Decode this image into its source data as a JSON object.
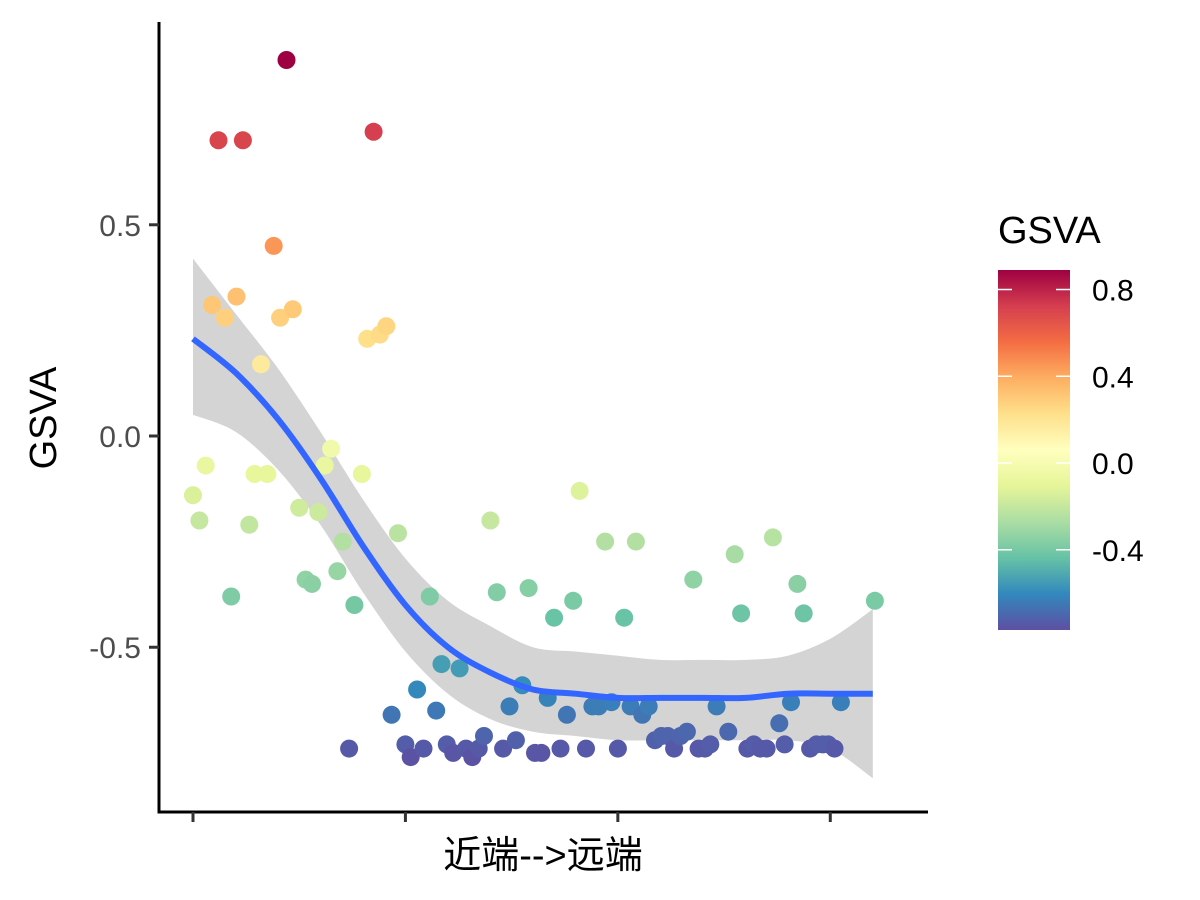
{
  "chart_data": {
    "type": "scatter",
    "xlabel": "近端-->远端",
    "ylabel": "GSVA",
    "ylim": [
      -0.89,
      0.98
    ],
    "xlim": [
      -1.6,
      34.6
    ],
    "xticks": [
      0,
      10,
      20,
      30
    ],
    "xtick_labels": [
      "",
      "",
      "",
      ""
    ],
    "yticks": [
      -0.5,
      0.0,
      0.5
    ],
    "ytick_labels": [
      "-0.5",
      "0.0",
      "0.5"
    ],
    "grid": false,
    "legend": {
      "title": "GSVA",
      "type": "colorbar",
      "placement": "right",
      "range": [
        -0.77,
        0.89
      ],
      "ticks": [
        -0.4,
        0.0,
        0.4,
        0.8
      ],
      "tick_labels": [
        "-0.4",
        "0.0",
        "0.4",
        "0.8"
      ]
    },
    "colormap": [
      "#5e4fa2",
      "#3288bd",
      "#66c2a5",
      "#abdda4",
      "#e6f598",
      "#ffffbf",
      "#fee08b",
      "#fdae61",
      "#f46d43",
      "#d53e4f",
      "#9e0142"
    ],
    "smooth": {
      "method": "loess",
      "color": "#3366ff",
      "band_color": "#d4d4d4",
      "x": [
        0,
        2,
        4,
        6,
        8,
        10,
        12,
        14,
        16,
        18,
        20,
        22,
        24,
        26,
        28,
        30,
        32
      ],
      "y": [
        0.23,
        0.15,
        0.04,
        -0.1,
        -0.26,
        -0.4,
        -0.5,
        -0.56,
        -0.6,
        -0.61,
        -0.62,
        -0.62,
        -0.62,
        -0.62,
        -0.61,
        -0.61,
        -0.61
      ],
      "lower": [
        0.05,
        0.01,
        -0.08,
        -0.21,
        -0.37,
        -0.51,
        -0.61,
        -0.67,
        -0.7,
        -0.71,
        -0.72,
        -0.72,
        -0.72,
        -0.72,
        -0.72,
        -0.74,
        -0.81
      ],
      "upper": [
        0.42,
        0.29,
        0.16,
        0.01,
        -0.15,
        -0.29,
        -0.39,
        -0.45,
        -0.5,
        -0.51,
        -0.52,
        -0.53,
        -0.53,
        -0.53,
        -0.52,
        -0.48,
        -0.41
      ]
    },
    "points": [
      {
        "x": 0,
        "y": -0.14
      },
      {
        "x": 0.3,
        "y": -0.2
      },
      {
        "x": 0.6,
        "y": -0.07
      },
      {
        "x": 0.9,
        "y": 0.31
      },
      {
        "x": 1.2,
        "y": 0.7
      },
      {
        "x": 1.5,
        "y": 0.28
      },
      {
        "x": 1.8,
        "y": -0.38
      },
      {
        "x": 2.05,
        "y": 0.33
      },
      {
        "x": 2.35,
        "y": 0.7
      },
      {
        "x": 2.65,
        "y": -0.21
      },
      {
        "x": 2.9,
        "y": -0.09
      },
      {
        "x": 3.2,
        "y": 0.17
      },
      {
        "x": 3.5,
        "y": -0.09
      },
      {
        "x": 3.8,
        "y": 0.45
      },
      {
        "x": 4.1,
        "y": 0.28
      },
      {
        "x": 4.4,
        "y": 0.89
      },
      {
        "x": 4.7,
        "y": 0.3
      },
      {
        "x": 5.0,
        "y": -0.17
      },
      {
        "x": 5.3,
        "y": -0.34
      },
      {
        "x": 5.6,
        "y": -0.35
      },
      {
        "x": 5.9,
        "y": -0.18
      },
      {
        "x": 6.2,
        "y": -0.07
      },
      {
        "x": 6.5,
        "y": -0.03
      },
      {
        "x": 6.8,
        "y": -0.32
      },
      {
        "x": 7.05,
        "y": -0.25
      },
      {
        "x": 7.35,
        "y": -0.74
      },
      {
        "x": 7.6,
        "y": -0.4
      },
      {
        "x": 7.95,
        "y": -0.09
      },
      {
        "x": 8.2,
        "y": 0.23
      },
      {
        "x": 8.5,
        "y": 0.72
      },
      {
        "x": 8.8,
        "y": 0.24
      },
      {
        "x": 9.1,
        "y": 0.26
      },
      {
        "x": 9.35,
        "y": -0.66
      },
      {
        "x": 9.65,
        "y": -0.23
      },
      {
        "x": 10.0,
        "y": -0.73
      },
      {
        "x": 10.25,
        "y": -0.76
      },
      {
        "x": 10.55,
        "y": -0.6
      },
      {
        "x": 10.85,
        "y": -0.74
      },
      {
        "x": 11.15,
        "y": -0.38
      },
      {
        "x": 11.45,
        "y": -0.65
      },
      {
        "x": 11.7,
        "y": -0.54
      },
      {
        "x": 11.95,
        "y": -0.73
      },
      {
        "x": 12.25,
        "y": -0.75
      },
      {
        "x": 12.55,
        "y": -0.55
      },
      {
        "x": 12.85,
        "y": -0.74
      },
      {
        "x": 13.15,
        "y": -0.76
      },
      {
        "x": 13.45,
        "y": -0.74
      },
      {
        "x": 13.7,
        "y": -0.71
      },
      {
        "x": 14.0,
        "y": -0.2
      },
      {
        "x": 14.3,
        "y": -0.37
      },
      {
        "x": 14.6,
        "y": -0.74
      },
      {
        "x": 14.9,
        "y": -0.64
      },
      {
        "x": 15.2,
        "y": -0.72
      },
      {
        "x": 15.5,
        "y": -0.59
      },
      {
        "x": 15.8,
        "y": -0.36
      },
      {
        "x": 16.1,
        "y": -0.75
      },
      {
        "x": 16.4,
        "y": -0.75
      },
      {
        "x": 16.7,
        "y": -0.62
      },
      {
        "x": 17.0,
        "y": -0.43
      },
      {
        "x": 17.3,
        "y": -0.74
      },
      {
        "x": 17.6,
        "y": -0.66
      },
      {
        "x": 17.9,
        "y": -0.39
      },
      {
        "x": 18.2,
        "y": -0.13
      },
      {
        "x": 18.5,
        "y": -0.74
      },
      {
        "x": 18.8,
        "y": -0.64
      },
      {
        "x": 19.1,
        "y": -0.64
      },
      {
        "x": 19.4,
        "y": -0.25
      },
      {
        "x": 19.7,
        "y": -0.63
      },
      {
        "x": 20.0,
        "y": -0.74
      },
      {
        "x": 20.3,
        "y": -0.43
      },
      {
        "x": 20.6,
        "y": -0.64
      },
      {
        "x": 20.85,
        "y": -0.25
      },
      {
        "x": 21.15,
        "y": -0.66
      },
      {
        "x": 21.45,
        "y": -0.64
      },
      {
        "x": 21.75,
        "y": -0.72
      },
      {
        "x": 22.05,
        "y": -0.71
      },
      {
        "x": 22.35,
        "y": -0.71
      },
      {
        "x": 22.65,
        "y": -0.74
      },
      {
        "x": 22.95,
        "y": -0.71
      },
      {
        "x": 23.25,
        "y": -0.7
      },
      {
        "x": 23.55,
        "y": -0.34
      },
      {
        "x": 23.8,
        "y": -0.74
      },
      {
        "x": 24.1,
        "y": -0.74
      },
      {
        "x": 24.35,
        "y": -0.73
      },
      {
        "x": 24.65,
        "y": -0.64
      },
      {
        "x": 25.2,
        "y": -0.7
      },
      {
        "x": 25.5,
        "y": -0.28
      },
      {
        "x": 25.8,
        "y": -0.42
      },
      {
        "x": 26.1,
        "y": -0.74
      },
      {
        "x": 26.4,
        "y": -0.73
      },
      {
        "x": 26.7,
        "y": -0.74
      },
      {
        "x": 27.0,
        "y": -0.74
      },
      {
        "x": 27.3,
        "y": -0.24
      },
      {
        "x": 27.6,
        "y": -0.68
      },
      {
        "x": 27.85,
        "y": -0.73
      },
      {
        "x": 28.15,
        "y": -0.63
      },
      {
        "x": 28.45,
        "y": -0.35
      },
      {
        "x": 28.75,
        "y": -0.42
      },
      {
        "x": 29.05,
        "y": -0.74
      },
      {
        "x": 29.35,
        "y": -0.73
      },
      {
        "x": 29.65,
        "y": -0.73
      },
      {
        "x": 29.9,
        "y": -0.73
      },
      {
        "x": 30.2,
        "y": -0.74
      },
      {
        "x": 30.5,
        "y": -0.63
      },
      {
        "x": 32.1,
        "y": -0.39
      }
    ]
  }
}
